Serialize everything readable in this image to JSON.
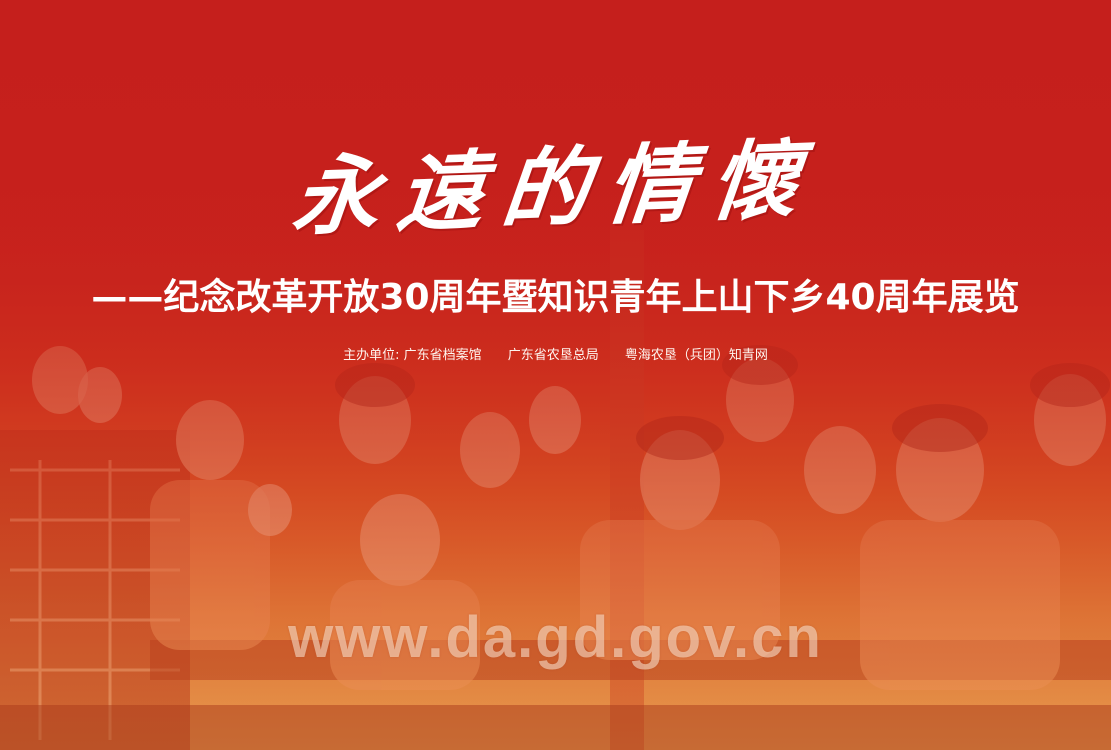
{
  "title": "永遠的情懷",
  "subtitle": "——纪念改革开放30周年暨知识青年上山下乡40周年展览",
  "organizers": {
    "prefix": "主办单位:",
    "items": [
      "广东省档案馆",
      "广东省农垦总局",
      "粤海农垦（兵团）知青网"
    ]
  },
  "watermark_url": "www.da.gd.gov.cn",
  "colors": {
    "banner_red": "#c51f1c",
    "photo_tint": "#e06826",
    "text": "#ffffff"
  }
}
